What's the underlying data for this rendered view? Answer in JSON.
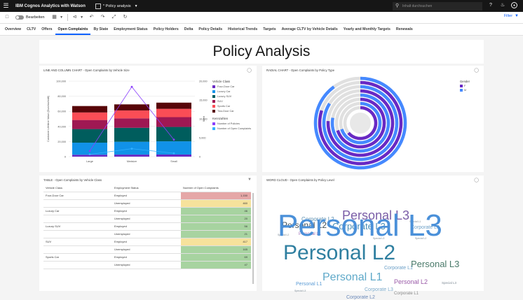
{
  "app": {
    "brand": "IBM Cognos Analytics with Watson",
    "doc_title": "* Policy analysis",
    "search_placeholder": "Inhalt durchsuchen"
  },
  "toolbar": {
    "edit_label": "Bearbeiten",
    "filter_label": "Filter"
  },
  "tabs": [
    {
      "label": "Overview",
      "active": false
    },
    {
      "label": "CLTV",
      "active": false
    },
    {
      "label": "Offers",
      "active": false
    },
    {
      "label": "Open Complaints",
      "active": true
    },
    {
      "label": "By State",
      "active": false
    },
    {
      "label": "Employment Status",
      "active": false
    },
    {
      "label": "Policy Holders",
      "active": false
    },
    {
      "label": "Delta",
      "active": false
    },
    {
      "label": "Policy Details",
      "active": false
    },
    {
      "label": "Historical Trends",
      "active": false
    },
    {
      "label": "Targets",
      "active": false
    },
    {
      "label": "Average CLTV by Vehicle Details",
      "active": false
    },
    {
      "label": "Yearly and Monthly Targets",
      "active": false
    },
    {
      "label": "Renewals",
      "active": false
    }
  ],
  "page_title": "Policy Analysis",
  "panels": {
    "line_column": {
      "title": "LINE AND COLUMN CHART - Open Complaints by Vehicle Size"
    },
    "radial": {
      "title": "RADIAL CHART - Open Complaints by Policy Type"
    },
    "table": {
      "title": "TABLE - Open Complaints by Vehicle Class"
    },
    "word_cloud": {
      "title": "WORD CLOUD - Open Complaints by Policy Level"
    }
  },
  "chart_data": [
    {
      "type": "bar",
      "title": "LINE AND COLUMN CHART - Open Complaints by Vehicle Size",
      "categories": [
        "Large",
        "Medsize",
        "Small"
      ],
      "y_ticks_left": [
        "100,000",
        "80,000",
        "60,000",
        "40,000",
        "20,000",
        "0"
      ],
      "ylabel_left": "Customer Lifetime Value (Durchschnitt)",
      "y_ticks_right": [
        "20,000",
        "15,000",
        "10,000",
        "5,000",
        "0"
      ],
      "ylabel_right": "Wert",
      "ylim_left": [
        0,
        100000
      ],
      "ylim_right": [
        0,
        20000
      ],
      "legend_title_1": "Vehicle Class",
      "series": [
        {
          "name": "Four-Door Car",
          "color": "#6929c4",
          "values": [
            2500,
            2700,
            2800
          ]
        },
        {
          "name": "Luxury Car",
          "color": "#1192e8",
          "values": [
            16000,
            17000,
            17500
          ]
        },
        {
          "name": "Luxury SUV",
          "color": "#005d5d",
          "values": [
            18000,
            18500,
            19000
          ]
        },
        {
          "name": "SUV",
          "color": "#9f1853",
          "values": [
            12000,
            12500,
            13000
          ]
        },
        {
          "name": "Sports Car",
          "color": "#fa4d56",
          "values": [
            10000,
            10500,
            11000
          ]
        },
        {
          "name": "Two-Door Car",
          "color": "#570408",
          "values": [
            8500,
            8000,
            8200
          ]
        }
      ],
      "legend_title_2": "Kennzahlen",
      "lines": [
        {
          "name": "Number of Policies",
          "color": "#8a3ffc",
          "values": [
            1500,
            18500,
            4500
          ]
        },
        {
          "name": "Number of Open Complaints",
          "color": "#33b1ff",
          "values": [
            600,
            2100,
            900
          ]
        }
      ]
    },
    {
      "type": "pie",
      "title": "RADIAL CHART - Open Complaints by Policy Type",
      "legend_title": "Gender",
      "legend": [
        {
          "name": "F",
          "color": "#6929c4"
        },
        {
          "name": "M",
          "color": "#4589ff"
        }
      ],
      "rings": [
        {
          "F": 0.8,
          "M": 0.9
        },
        {
          "F": 0.76,
          "M": 0.84
        },
        {
          "F": 0.7,
          "M": 0.78
        },
        {
          "F": 0.64,
          "M": 0.7
        }
      ]
    },
    {
      "type": "table",
      "title": "TABLE - Open Complaints by Vehicle Class",
      "columns": [
        "Vehicle Class",
        "Employment Status",
        "Number of Open Complaints"
      ],
      "rows": [
        {
          "vehicle": "Four-Door Car",
          "status": "Employed",
          "value": "1,150",
          "color": "#e5a7a7"
        },
        {
          "vehicle": "",
          "status": "Unemployed",
          "value": "460",
          "color": "#f6e29c"
        },
        {
          "vehicle": "Luxury Car",
          "status": "Employed",
          "value": "46",
          "color": "#a7d3a0"
        },
        {
          "vehicle": "",
          "status": "Unemployed",
          "value": "20",
          "color": "#a7d3a0"
        },
        {
          "vehicle": "Luxury SUV",
          "status": "Employed",
          "value": "56",
          "color": "#a7d3a0"
        },
        {
          "vehicle": "",
          "status": "Unemployed",
          "value": "21",
          "color": "#a7d3a0"
        },
        {
          "vehicle": "SUV",
          "status": "Employed",
          "value": "417",
          "color": "#f6e29c"
        },
        {
          "vehicle": "",
          "status": "Unemployed",
          "value": "165",
          "color": "#a7d3a0"
        },
        {
          "vehicle": "Sports Car",
          "status": "Employed",
          "value": "69",
          "color": "#a7d3a0"
        },
        {
          "vehicle": "",
          "status": "Unemployed",
          "value": "47",
          "color": "#a7d3a0"
        }
      ]
    }
  ],
  "word_cloud": {
    "words": [
      {
        "text": "Corporate L2",
        "color": "#5b8fb0",
        "size": 8
      },
      {
        "text": "Personal L3",
        "color": "#7b5ea7",
        "size": 18
      },
      {
        "text": "Special L1",
        "color": "#7d8a95",
        "size": 3.5
      },
      {
        "text": "Personal L2",
        "color": "#3f4e57",
        "size": 12
      },
      {
        "text": "Corporate L3",
        "color": "#4a8fb8",
        "size": 13
      },
      {
        "text": "Corporate L3",
        "color": "#6ca0c8",
        "size": 7
      },
      {
        "text": "Personal L1",
        "color": "#9b6fb8",
        "size": 6
      },
      {
        "text": "Special L2",
        "color": "#7d8a95",
        "size": 3.5
      },
      {
        "text": "Personal L3",
        "color": "#4a90d9",
        "size": 44
      },
      {
        "text": "Special L2",
        "color": "#7d8a95",
        "size": 3.5
      },
      {
        "text": "Special L3",
        "color": "#7d8a95",
        "size": 3.5
      },
      {
        "text": "Personal L2",
        "color": "#2f7fa0",
        "size": 30
      },
      {
        "text": "Personal L3",
        "color": "#4a7a6a",
        "size": 13
      },
      {
        "text": "Corporate L1",
        "color": "#6a9fc7",
        "size": 7
      },
      {
        "text": "Personal L1",
        "color": "#5fa9c9",
        "size": 16
      },
      {
        "text": "Personal L2",
        "color": "#9a5aa8",
        "size": 9
      },
      {
        "text": "Corporate L3",
        "color": "#7aa8c8",
        "size": 7
      },
      {
        "text": "Special L3",
        "color": "#7d8a95",
        "size": 4.5
      },
      {
        "text": "Corporate L2",
        "color": "#6a88b8",
        "size": 7
      },
      {
        "text": "Special L3",
        "color": "#7d8a95",
        "size": 3.5
      },
      {
        "text": "Personal L1",
        "color": "#5a9bd5",
        "size": 7
      },
      {
        "text": "Corporate L1",
        "color": "#8a8a8a",
        "size": 6
      }
    ]
  }
}
